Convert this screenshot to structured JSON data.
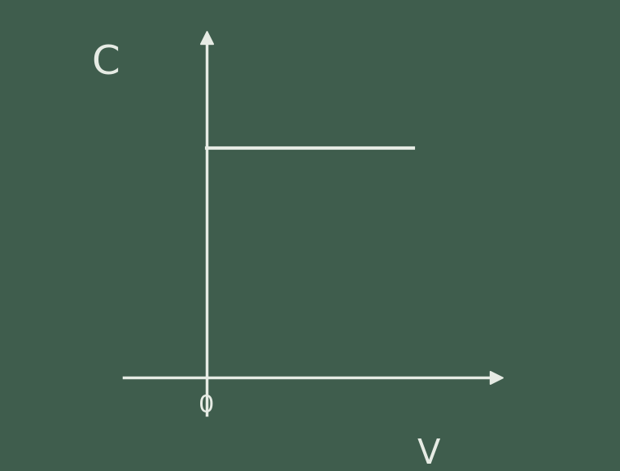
{
  "chart_data": {
    "type": "line",
    "x_label": "V",
    "y_label": "C",
    "x": [
      0,
      2.5
    ],
    "values": [
      2.5,
      2.5
    ],
    "color": "#e6ebe4",
    "xlim": [
      -1.0,
      3.5
    ],
    "ylim": [
      -0.4,
      3.7
    ],
    "xticks": [
      0
    ],
    "tick_labels": "x",
    "grid": false
  }
}
